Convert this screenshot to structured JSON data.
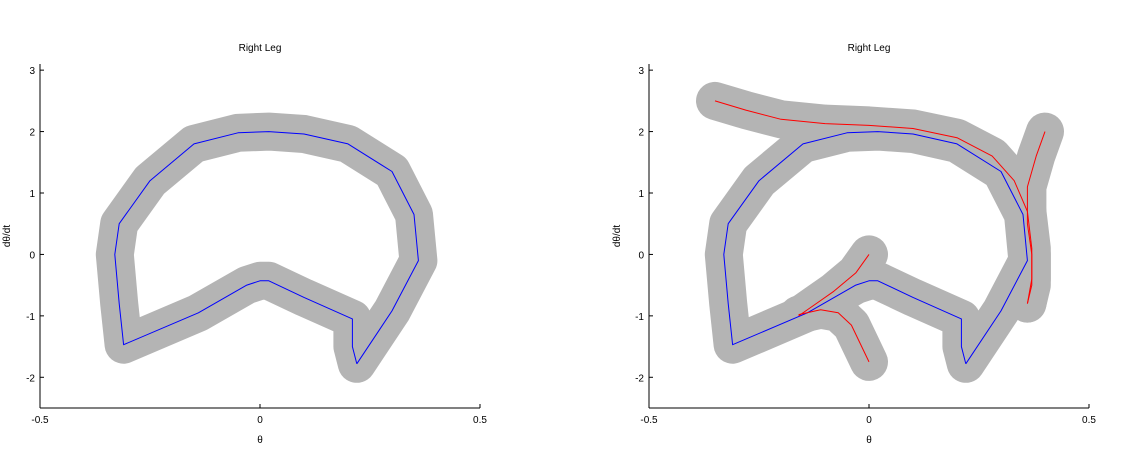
{
  "chart_data": [
    {
      "type": "line",
      "title": "Right Leg",
      "xlabel": "θ",
      "ylabel": "dθ/dt",
      "xlim": [
        -0.5,
        0.5
      ],
      "ylim": [
        -2.5,
        3.1
      ],
      "xticks": [
        "-0.5",
        "0",
        "0.5"
      ],
      "yticks": [
        "-2",
        "-1",
        "0",
        "1",
        "2",
        "3"
      ],
      "xtick_values": [
        -0.5,
        0,
        0.5
      ],
      "ytick_values": [
        -2,
        -1,
        0,
        1,
        2,
        3
      ],
      "grid": false,
      "band_color": "#b4b4b4",
      "series": [
        {
          "color": "#0000ff",
          "x": [
            0.22,
            0.3,
            0.36,
            0.35,
            0.3,
            0.2,
            0.1,
            0.02,
            -0.05,
            -0.15,
            -0.25,
            -0.32,
            -0.33,
            -0.32,
            -0.31,
            -0.14,
            -0.03,
            0.0,
            0.02,
            0.1,
            0.21,
            0.21,
            0.22
          ],
          "y": [
            -1.78,
            -0.92,
            -0.1,
            0.65,
            1.35,
            1.8,
            1.96,
            2.0,
            1.98,
            1.8,
            1.2,
            0.5,
            0.0,
            -0.8,
            -1.47,
            -0.95,
            -0.5,
            -0.43,
            -0.43,
            -0.7,
            -1.05,
            -1.5,
            -1.78
          ]
        }
      ]
    },
    {
      "type": "line",
      "title": "Right Leg",
      "xlabel": "θ",
      "ylabel": "dθ/dt",
      "xlim": [
        -0.5,
        0.5
      ],
      "ylim": [
        -2.5,
        3.1
      ],
      "xticks": [
        "-0.5",
        "0",
        "0.5"
      ],
      "yticks": [
        "-2",
        "-1",
        "0",
        "1",
        "2",
        "3"
      ],
      "xtick_values": [
        -0.5,
        0,
        0.5
      ],
      "ytick_values": [
        -2,
        -1,
        0,
        1,
        2,
        3
      ],
      "grid": false,
      "band_color": "#b4b4b4",
      "series": [
        {
          "color": "#0000ff",
          "x": [
            0.22,
            0.3,
            0.36,
            0.35,
            0.3,
            0.2,
            0.1,
            0.02,
            -0.05,
            -0.15,
            -0.25,
            -0.32,
            -0.33,
            -0.32,
            -0.31,
            -0.14,
            -0.03,
            0.0,
            0.02,
            0.1,
            0.21,
            0.21,
            0.22
          ],
          "y": [
            -1.78,
            -0.92,
            -0.1,
            0.65,
            1.35,
            1.8,
            1.96,
            2.0,
            1.98,
            1.8,
            1.2,
            0.5,
            0.0,
            -0.8,
            -1.47,
            -0.95,
            -0.5,
            -0.43,
            -0.43,
            -0.7,
            -1.05,
            -1.5,
            -1.78
          ]
        },
        {
          "color": "#ff0000",
          "x": [
            -0.35,
            -0.28,
            -0.2,
            -0.1,
            0.0,
            0.1,
            0.2,
            0.28,
            0.33,
            0.36,
            0.37,
            0.37,
            0.36
          ],
          "y": [
            2.5,
            2.35,
            2.2,
            2.13,
            2.1,
            2.05,
            1.9,
            1.6,
            1.2,
            0.7,
            0.1,
            -0.5,
            -0.8
          ]
        },
        {
          "color": "#ff0000",
          "x": [
            0.4,
            0.38,
            0.36,
            0.36,
            0.37,
            0.37,
            0.36
          ],
          "y": [
            2.0,
            1.6,
            1.1,
            0.5,
            0.0,
            -0.4,
            -0.8
          ]
        },
        {
          "color": "#ff0000",
          "x": [
            0.0,
            -0.03,
            -0.08,
            -0.12,
            -0.16
          ],
          "y": [
            0.0,
            -0.3,
            -0.6,
            -0.8,
            -1.0
          ]
        },
        {
          "color": "#ff0000",
          "x": [
            -0.16,
            -0.11,
            -0.07,
            -0.04,
            -0.02,
            0.0
          ],
          "y": [
            -0.98,
            -0.9,
            -0.95,
            -1.15,
            -1.45,
            -1.75
          ]
        }
      ]
    }
  ]
}
